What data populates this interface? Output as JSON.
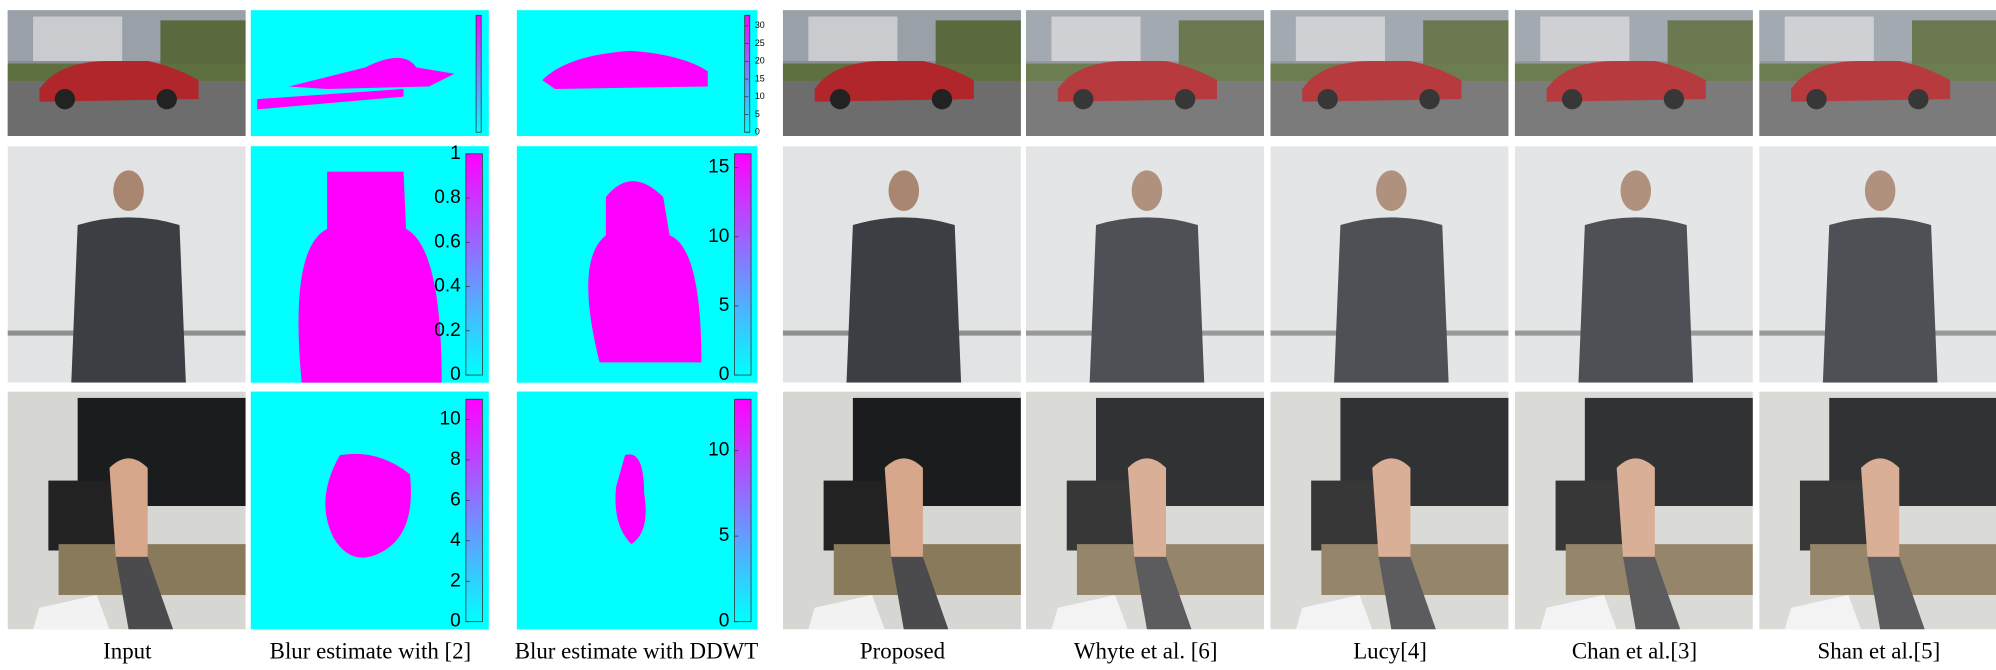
{
  "captions": [
    "Input",
    "Blur estimate with [2]",
    "Blur estimate with DDWT",
    "Proposed",
    "Whyte et al. [6]",
    "Lucy[4]",
    "Chan et al.[3]",
    "Shan et al.[5]"
  ],
  "rows": [
    {
      "blur_2": {},
      "ddwt": {
        "range": [
          0,
          33
        ],
        "ticks": [
          0,
          5,
          10,
          15,
          20,
          25,
          30
        ]
      }
    },
    {
      "blur_2": {
        "range": [
          0,
          1
        ],
        "ticks": [
          0,
          0.2,
          0.4,
          0.6,
          0.8,
          1
        ]
      },
      "ddwt": {
        "range": [
          0,
          16
        ],
        "ticks": [
          0,
          5,
          10,
          15
        ]
      }
    },
    {
      "blur_2": {
        "range": [
          0,
          11
        ],
        "ticks": [
          0,
          2,
          4,
          6,
          8,
          10
        ]
      },
      "ddwt": {
        "range": [
          0,
          13
        ],
        "ticks": [
          0,
          5,
          10
        ]
      }
    }
  ]
}
